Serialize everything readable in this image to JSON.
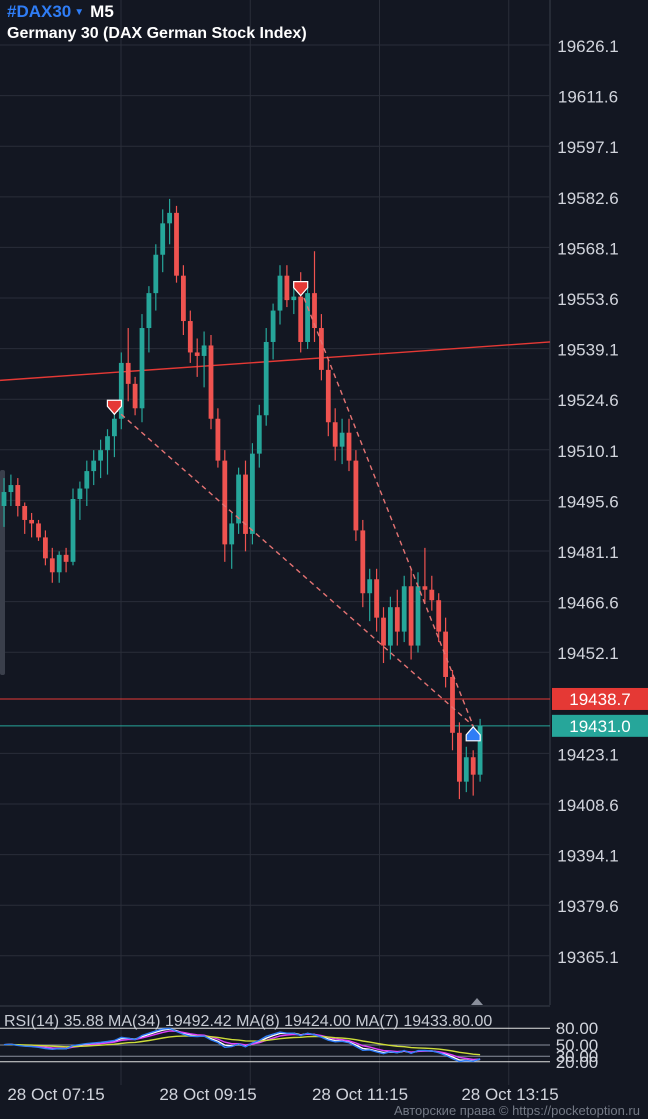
{
  "header": {
    "symbol": "#DAX30",
    "timeframe": "M5",
    "instrument_name": "Germany 30 (DAX German Stock Index)"
  },
  "colors": {
    "background": "#131722",
    "grid": "#2a2e39",
    "bull_candle": "#26a69a",
    "bear_candle": "#ef5350",
    "accent_blue": "#2f7df6",
    "trendline": "#e53935"
  },
  "price_axis": {
    "ticks": [
      "19626.1",
      "19611.6",
      "19597.1",
      "19582.6",
      "19568.1",
      "19553.6",
      "19539.1",
      "19524.6",
      "19510.1",
      "19495.6",
      "19481.1",
      "19466.6",
      "19452.1",
      "19438.7",
      "19431.0",
      "19423.1",
      "19408.6",
      "19394.1",
      "19379.6",
      "19365.1"
    ]
  },
  "price_labels": {
    "red_line": "19438.7",
    "current": "19431.0"
  },
  "time_axis": {
    "labels": [
      "28 Oct 07:15",
      "28 Oct 09:15",
      "28 Oct 11:15",
      "28 Oct 13:15"
    ]
  },
  "rsi": {
    "label": "RSI(14) 35.88 MA(34) 19492.42 MA(8) 19424.00 MA(7) 19433.80.00",
    "levels": [
      "80.00",
      "50.00",
      "30.00",
      "20.00"
    ]
  },
  "copyright": "Авторские права © https://pocketoption.ru",
  "chart_data": {
    "type": "candlestick",
    "title": "Germany 30 (DAX German Stock Index)",
    "symbol": "#DAX30",
    "timeframe": "M5",
    "ylim": [
      19351,
      19639
    ],
    "x_labels": [
      "28 Oct 07:15",
      "28 Oct 09:15",
      "28 Oct 11:15",
      "28 Oct 13:15"
    ],
    "horizontal_lines": [
      {
        "value": 19438.7,
        "color": "#e53935"
      },
      {
        "value": 19431.0,
        "color": "#26a69a"
      }
    ],
    "trendline": {
      "from": 19530,
      "to": 19541,
      "color": "#e53935"
    },
    "dashed_lines": [
      {
        "from_time": "07:55",
        "from": 19522,
        "to_time": "13:15",
        "to": 19431
      },
      {
        "from_time": "10:55",
        "from": 19556,
        "to_time": "13:15",
        "to": 19431
      }
    ],
    "signals": [
      {
        "time": "07:55",
        "direction": "sell",
        "price": 19522
      },
      {
        "time": "10:55",
        "direction": "sell",
        "price": 19556
      },
      {
        "time": "13:15",
        "direction": "buy",
        "price": 19429
      }
    ],
    "candles": [
      {
        "o": 19494.0,
        "h": 19502.0,
        "l": 19488.0,
        "c": 19498.0
      },
      {
        "o": 19498.0,
        "h": 19503.0,
        "l": 19494.0,
        "c": 19500.0
      },
      {
        "o": 19500.0,
        "h": 19502.0,
        "l": 19491.0,
        "c": 19494.0
      },
      {
        "o": 19494.0,
        "h": 19495.0,
        "l": 19486.0,
        "c": 19490.0
      },
      {
        "o": 19490.0,
        "h": 19492.0,
        "l": 19485.0,
        "c": 19489.0
      },
      {
        "o": 19489.0,
        "h": 19490.0,
        "l": 19484.0,
        "c": 19485.0
      },
      {
        "o": 19485.0,
        "h": 19487.0,
        "l": 19477.0,
        "c": 19479.0
      },
      {
        "o": 19479.0,
        "h": 19482.0,
        "l": 19472.0,
        "c": 19475.0
      },
      {
        "o": 19475.0,
        "h": 19481.0,
        "l": 19472.0,
        "c": 19480.0
      },
      {
        "o": 19480.0,
        "h": 19482.0,
        "l": 19475.0,
        "c": 19478.0
      },
      {
        "o": 19478.0,
        "h": 19499.0,
        "l": 19477.0,
        "c": 19496.0
      },
      {
        "o": 19496.0,
        "h": 19501.0,
        "l": 19490.0,
        "c": 19499.0
      },
      {
        "o": 19499.0,
        "h": 19507.0,
        "l": 19494.0,
        "c": 19504.0
      },
      {
        "o": 19504.0,
        "h": 19510.0,
        "l": 19500.0,
        "c": 19507.0
      },
      {
        "o": 19507.0,
        "h": 19513.0,
        "l": 19502.0,
        "c": 19510.0
      },
      {
        "o": 19510.0,
        "h": 19516.0,
        "l": 19503.0,
        "c": 19514.0
      },
      {
        "o": 19514.0,
        "h": 19521.0,
        "l": 19508.0,
        "c": 19519.0
      },
      {
        "o": 19519.0,
        "h": 19538.0,
        "l": 19516.0,
        "c": 19535.0
      },
      {
        "o": 19535.0,
        "h": 19545.0,
        "l": 19524.0,
        "c": 19529.0
      },
      {
        "o": 19529.0,
        "h": 19531.0,
        "l": 19520.0,
        "c": 19522.0
      },
      {
        "o": 19522.0,
        "h": 19549.0,
        "l": 19518.0,
        "c": 19545.0
      },
      {
        "o": 19545.0,
        "h": 19557.0,
        "l": 19538.0,
        "c": 19555.0
      },
      {
        "o": 19555.0,
        "h": 19569.0,
        "l": 19550.0,
        "c": 19566.0
      },
      {
        "o": 19566.0,
        "h": 19579.0,
        "l": 19561.0,
        "c": 19575.0
      },
      {
        "o": 19575.0,
        "h": 19582.0,
        "l": 19569.0,
        "c": 19578.0
      },
      {
        "o": 19578.0,
        "h": 19580.0,
        "l": 19558.0,
        "c": 19560.0
      },
      {
        "o": 19560.0,
        "h": 19563.0,
        "l": 19543.0,
        "c": 19547.0
      },
      {
        "o": 19547.0,
        "h": 19550.0,
        "l": 19535.0,
        "c": 19538.0
      },
      {
        "o": 19538.0,
        "h": 19542.0,
        "l": 19531.0,
        "c": 19537.0
      },
      {
        "o": 19537.0,
        "h": 19544.0,
        "l": 19528.0,
        "c": 19540.0
      },
      {
        "o": 19540.0,
        "h": 19543.0,
        "l": 19516.0,
        "c": 19519.0
      },
      {
        "o": 19519.0,
        "h": 19522.0,
        "l": 19505.0,
        "c": 19507.0
      },
      {
        "o": 19507.0,
        "h": 19510.0,
        "l": 19478.0,
        "c": 19483.0
      },
      {
        "o": 19483.0,
        "h": 19492.0,
        "l": 19476.0,
        "c": 19489.0
      },
      {
        "o": 19489.0,
        "h": 19505.0,
        "l": 19486.0,
        "c": 19503.0
      },
      {
        "o": 19503.0,
        "h": 19507.0,
        "l": 19481.0,
        "c": 19486.0
      },
      {
        "o": 19486.0,
        "h": 19512.0,
        "l": 19483.0,
        "c": 19509.0
      },
      {
        "o": 19509.0,
        "h": 19523.0,
        "l": 19505.0,
        "c": 19520.0
      },
      {
        "o": 19520.0,
        "h": 19545.0,
        "l": 19517.0,
        "c": 19541.0
      },
      {
        "o": 19541.0,
        "h": 19552.0,
        "l": 19536.0,
        "c": 19550.0
      },
      {
        "o": 19550.0,
        "h": 19563.0,
        "l": 19546.0,
        "c": 19560.0
      },
      {
        "o": 19560.0,
        "h": 19563.0,
        "l": 19551.0,
        "c": 19553.0
      },
      {
        "o": 19553.0,
        "h": 19558.0,
        "l": 19549.0,
        "c": 19554.0
      },
      {
        "o": 19554.0,
        "h": 19561.0,
        "l": 19538.0,
        "c": 19541.0
      },
      {
        "o": 19541.0,
        "h": 19557.0,
        "l": 19539.0,
        "c": 19555.0
      },
      {
        "o": 19555.0,
        "h": 19567.0,
        "l": 19541.0,
        "c": 19545.0
      },
      {
        "o": 19545.0,
        "h": 19549.0,
        "l": 19530.0,
        "c": 19533.0
      },
      {
        "o": 19533.0,
        "h": 19536.0,
        "l": 19514.0,
        "c": 19518.0
      },
      {
        "o": 19518.0,
        "h": 19522.0,
        "l": 19507.0,
        "c": 19511.0
      },
      {
        "o": 19511.0,
        "h": 19519.0,
        "l": 19506.0,
        "c": 19515.0
      },
      {
        "o": 19515.0,
        "h": 19519.0,
        "l": 19504.0,
        "c": 19507.0
      },
      {
        "o": 19507.0,
        "h": 19510.0,
        "l": 19484.0,
        "c": 19487.0
      },
      {
        "o": 19487.0,
        "h": 19490.0,
        "l": 19465.0,
        "c": 19469.0
      },
      {
        "o": 19469.0,
        "h": 19476.0,
        "l": 19461.0,
        "c": 19473.0
      },
      {
        "o": 19473.0,
        "h": 19476.0,
        "l": 19458.0,
        "c": 19462.0
      },
      {
        "o": 19462.0,
        "h": 19465.0,
        "l": 19449.0,
        "c": 19454.0
      },
      {
        "o": 19454.0,
        "h": 19468.0,
        "l": 19450.0,
        "c": 19465.0
      },
      {
        "o": 19465.0,
        "h": 19470.0,
        "l": 19454.0,
        "c": 19458.0
      },
      {
        "o": 19458.0,
        "h": 19474.0,
        "l": 19455.0,
        "c": 19471.0
      },
      {
        "o": 19471.0,
        "h": 19476.0,
        "l": 19450.0,
        "c": 19454.0
      },
      {
        "o": 19454.0,
        "h": 19475.0,
        "l": 19452.0,
        "c": 19471.0
      },
      {
        "o": 19471.0,
        "h": 19482.0,
        "l": 19466.0,
        "c": 19470.0
      },
      {
        "o": 19470.0,
        "h": 19474.0,
        "l": 19464.0,
        "c": 19467.0
      },
      {
        "o": 19467.0,
        "h": 19469.0,
        "l": 19455.0,
        "c": 19458.0
      },
      {
        "o": 19458.0,
        "h": 19462.0,
        "l": 19442.0,
        "c": 19445.0
      },
      {
        "o": 19445.0,
        "h": 19447.0,
        "l": 19424.0,
        "c": 19429.0
      },
      {
        "o": 19429.0,
        "h": 19432.0,
        "l": 19410.0,
        "c": 19415.0
      },
      {
        "o": 19415.0,
        "h": 19425.0,
        "l": 19412.0,
        "c": 19422.0
      },
      {
        "o": 19422.0,
        "h": 19424.0,
        "l": 19411.0,
        "c": 19417.0
      },
      {
        "o": 19417.0,
        "h": 19433.0,
        "l": 19415.0,
        "c": 19431.0
      }
    ],
    "rsi": {
      "name": "RSI(14)",
      "value": 35.88,
      "levels": [
        80,
        50,
        30,
        20
      ]
    }
  }
}
